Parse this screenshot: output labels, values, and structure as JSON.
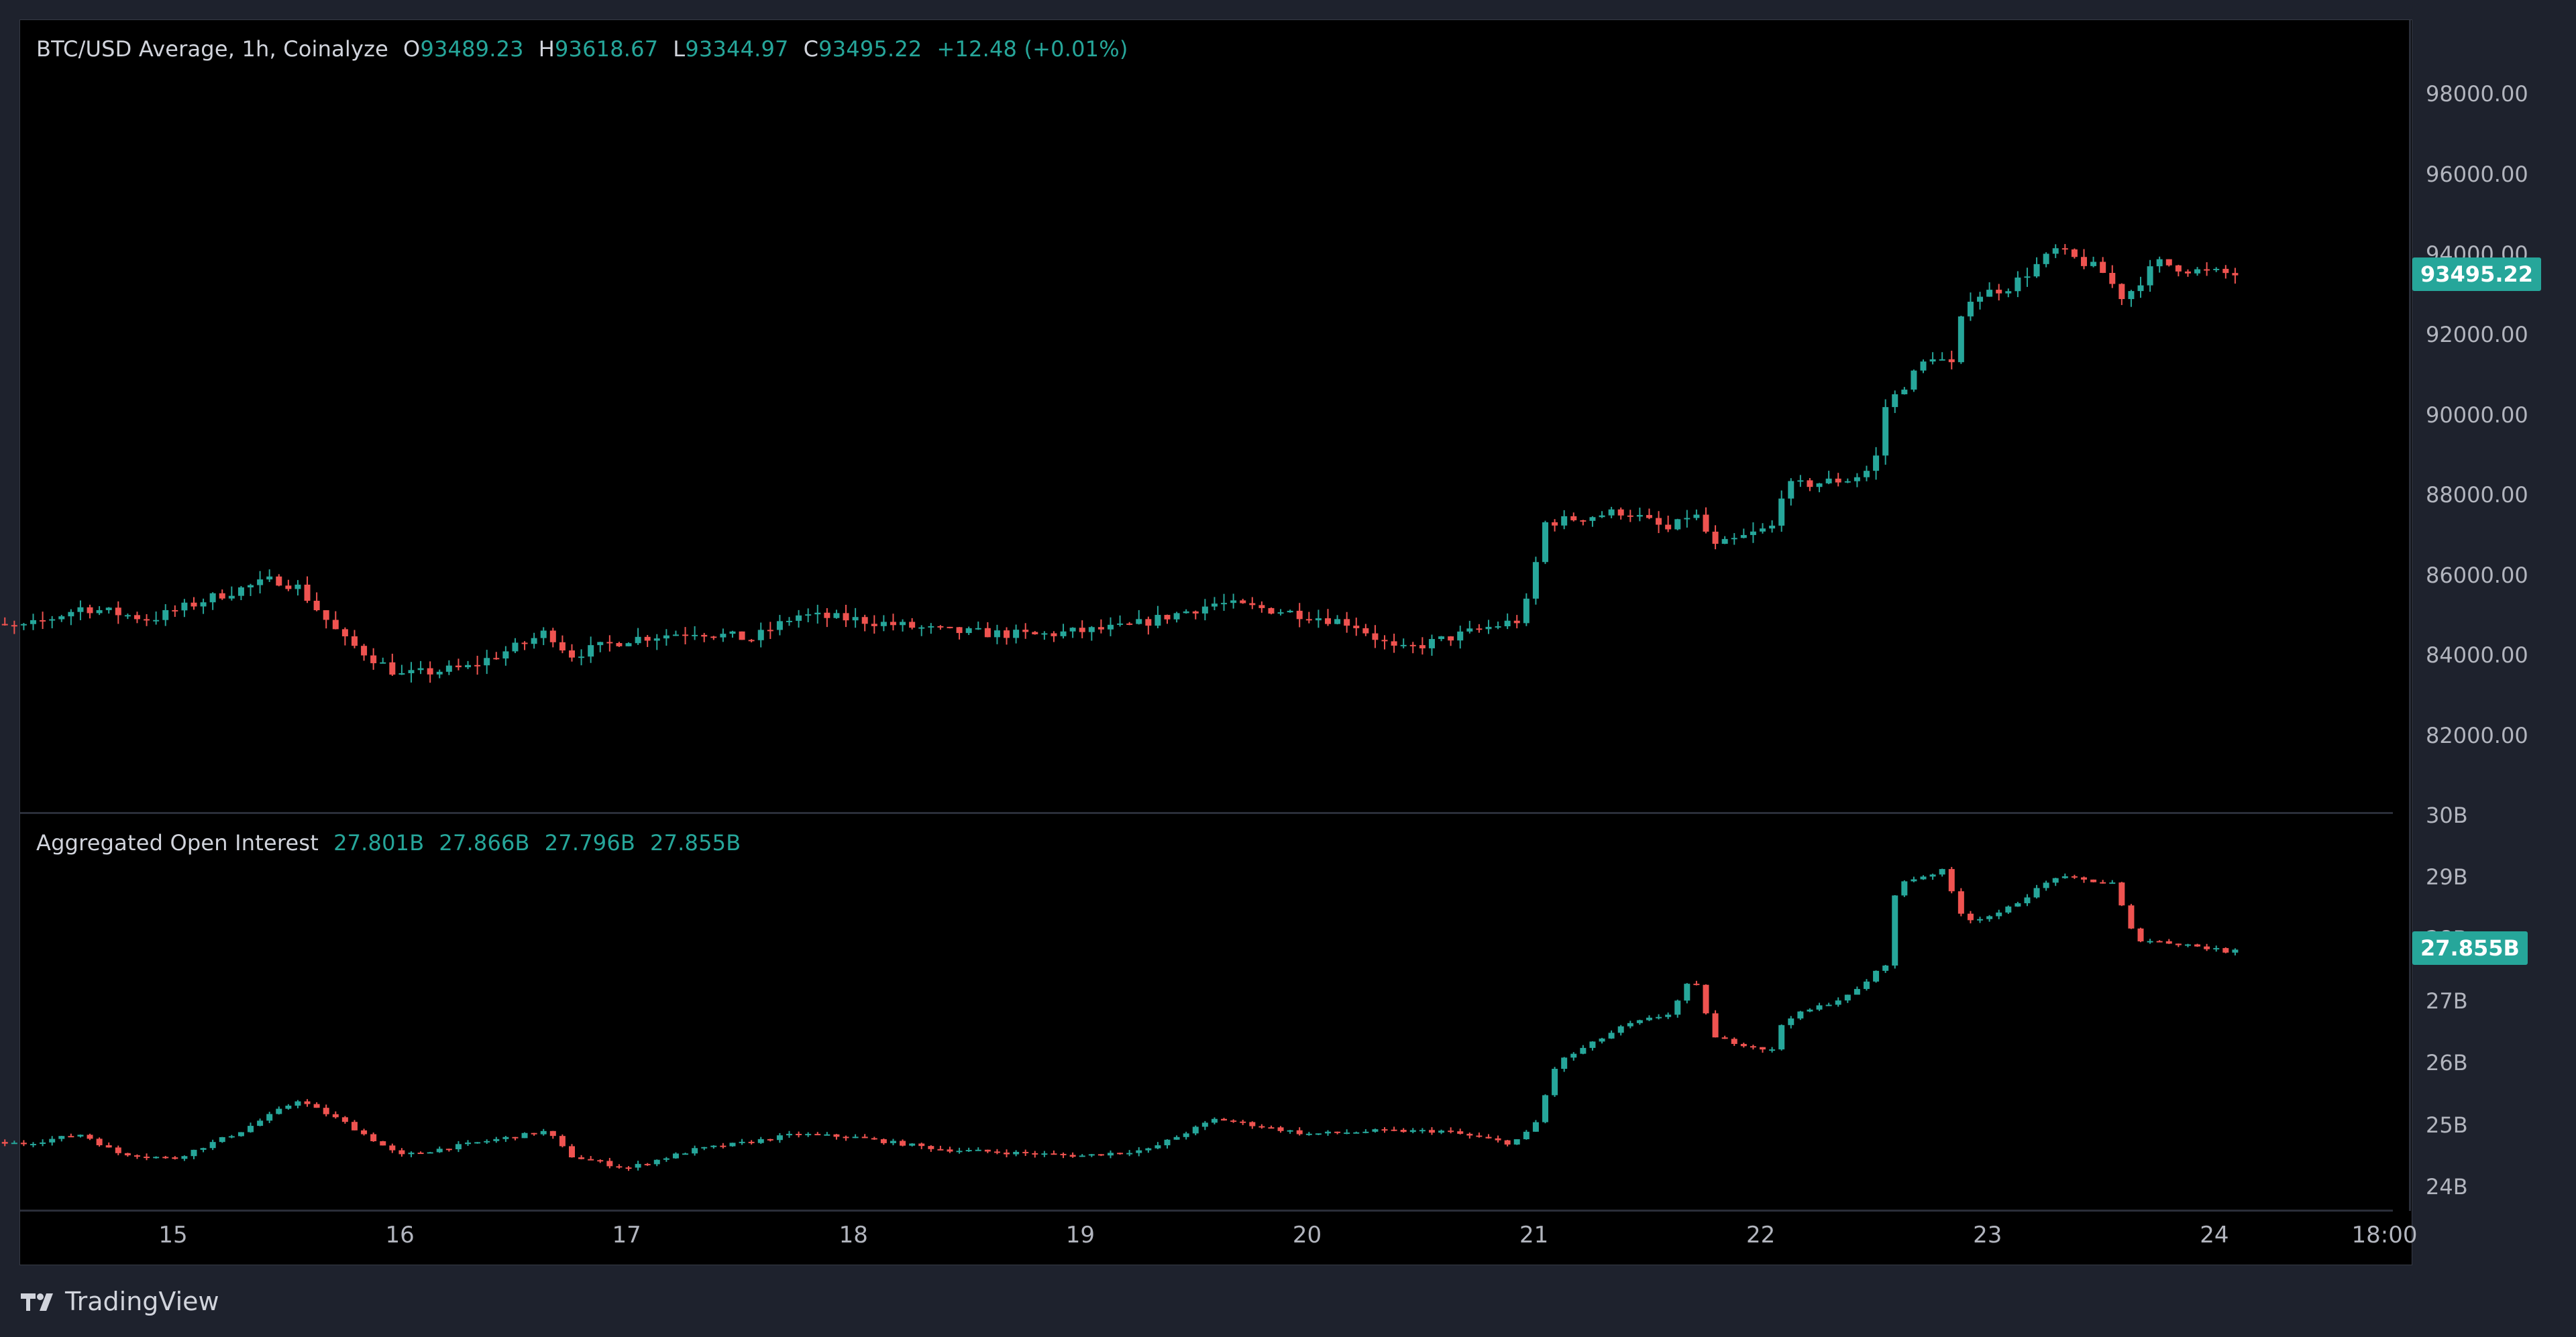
{
  "price_legend": {
    "title": "BTC/USD Average, 1h, Coinalyze",
    "o_label": "O",
    "o": "93489.23",
    "h_label": "H",
    "h": "93618.67",
    "l_label": "L",
    "l": "93344.97",
    "c_label": "C",
    "c": "93495.22",
    "change": "+12.48 (+0.01%)"
  },
  "oi_legend": {
    "title": "Aggregated Open Interest",
    "v1": "27.801B",
    "v2": "27.866B",
    "v3": "27.796B",
    "v4": "27.855B"
  },
  "price_badge": "93495.22",
  "oi_badge": "27.855B",
  "brand": "TradingView",
  "colors": {
    "up": "#26a69a",
    "down": "#ef5350",
    "bg": "#000000",
    "panel": "#1e222d"
  },
  "chart_data": [
    {
      "type": "candlestick",
      "title": "BTC/USD Average, 1h, Coinalyze",
      "ylim": [
        80000,
        99500
      ],
      "y_ticks": [
        "98000.00",
        "96000.00",
        "94000.00",
        "92000.00",
        "90000.00",
        "88000.00",
        "86000.00",
        "84000.00",
        "82000.00"
      ],
      "x_ticks": [
        "15",
        "16",
        "17",
        "18",
        "19",
        "20",
        "21",
        "22",
        "23",
        "24",
        "18:00"
      ],
      "last_close": 93495.22,
      "anchors_day_close": [
        [
          14.35,
          84700
        ],
        [
          14.6,
          85200
        ],
        [
          14.9,
          84900
        ],
        [
          15.2,
          85500
        ],
        [
          15.45,
          85900
        ],
        [
          15.55,
          85700
        ],
        [
          15.75,
          84400
        ],
        [
          16.0,
          83500
        ],
        [
          16.3,
          83700
        ],
        [
          16.55,
          84300
        ],
        [
          16.65,
          84600
        ],
        [
          16.75,
          84000
        ],
        [
          17.0,
          84400
        ],
        [
          17.3,
          84600
        ],
        [
          17.55,
          84400
        ],
        [
          17.75,
          85000
        ],
        [
          18.0,
          84900
        ],
        [
          18.4,
          84600
        ],
        [
          18.8,
          84500
        ],
        [
          19.2,
          84700
        ],
        [
          19.6,
          85300
        ],
        [
          19.9,
          85100
        ],
        [
          20.2,
          84800
        ],
        [
          20.4,
          84100
        ],
        [
          20.8,
          84700
        ],
        [
          20.95,
          84900
        ],
        [
          21.05,
          87300
        ],
        [
          21.4,
          87600
        ],
        [
          21.6,
          87100
        ],
        [
          21.7,
          87600
        ],
        [
          21.8,
          86700
        ],
        [
          22.05,
          87200
        ],
        [
          22.1,
          88200
        ],
        [
          22.4,
          88400
        ],
        [
          22.5,
          88700
        ],
        [
          22.55,
          90200
        ],
        [
          22.75,
          91500
        ],
        [
          22.85,
          91200
        ],
        [
          22.9,
          92900
        ],
        [
          23.1,
          93200
        ],
        [
          23.3,
          94100
        ],
        [
          23.5,
          93600
        ],
        [
          23.6,
          92900
        ],
        [
          23.75,
          93800
        ],
        [
          23.9,
          93600
        ],
        [
          24.1,
          93495
        ]
      ]
    },
    {
      "type": "candlestick",
      "title": "Aggregated Open Interest",
      "ylim": [
        23.6,
        30.0
      ],
      "y_ticks": [
        "30B",
        "29B",
        "28B",
        "27B",
        "26B",
        "25B",
        "24B"
      ],
      "last_close": 27.855,
      "anchors_day_close": [
        [
          14.35,
          24.7
        ],
        [
          14.6,
          24.85
        ],
        [
          14.75,
          24.55
        ],
        [
          15.0,
          24.45
        ],
        [
          15.3,
          24.9
        ],
        [
          15.55,
          25.4
        ],
        [
          15.75,
          25.05
        ],
        [
          16.0,
          24.5
        ],
        [
          16.4,
          24.75
        ],
        [
          16.65,
          24.9
        ],
        [
          16.75,
          24.5
        ],
        [
          17.0,
          24.3
        ],
        [
          17.3,
          24.6
        ],
        [
          17.5,
          24.7
        ],
        [
          17.75,
          24.85
        ],
        [
          18.0,
          24.8
        ],
        [
          18.4,
          24.6
        ],
        [
          19.0,
          24.5
        ],
        [
          19.3,
          24.6
        ],
        [
          19.6,
          25.1
        ],
        [
          20.0,
          24.85
        ],
        [
          20.3,
          24.9
        ],
        [
          20.6,
          24.9
        ],
        [
          20.9,
          24.7
        ],
        [
          21.0,
          24.95
        ],
        [
          21.1,
          26.0
        ],
        [
          21.4,
          26.6
        ],
        [
          21.6,
          26.8
        ],
        [
          21.7,
          27.4
        ],
        [
          21.8,
          26.4
        ],
        [
          22.05,
          26.2
        ],
        [
          22.1,
          26.7
        ],
        [
          22.4,
          27.1
        ],
        [
          22.55,
          27.6
        ],
        [
          22.6,
          28.9
        ],
        [
          22.8,
          29.1
        ],
        [
          22.9,
          28.3
        ],
        [
          23.05,
          28.4
        ],
        [
          23.3,
          29.0
        ],
        [
          23.55,
          28.9
        ],
        [
          23.65,
          28.0
        ],
        [
          23.9,
          27.9
        ],
        [
          24.05,
          27.8
        ],
        [
          24.1,
          27.855
        ]
      ]
    }
  ]
}
